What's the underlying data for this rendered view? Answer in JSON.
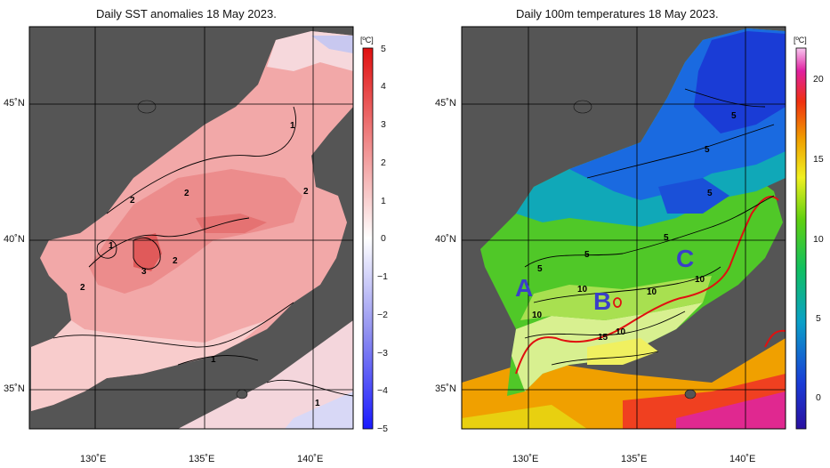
{
  "left_panel": {
    "title": "Daily SST anomalies 18 May 2023.",
    "unit": "[ºC]",
    "colorbar_ticks": [
      "5",
      "4",
      "3",
      "2",
      "1",
      "0",
      "−1",
      "−2",
      "−3",
      "−4",
      "−5"
    ],
    "contour_labels": [
      "1",
      "2",
      "2",
      "2",
      "1",
      "3",
      "2",
      "2",
      "1",
      "1"
    ]
  },
  "right_panel": {
    "title": "Daily 100m temperatures 18 May 2023.",
    "unit": "[ºC]",
    "colorbar_ticks": [
      "20",
      "15",
      "10",
      "5",
      "0"
    ],
    "contour_labels": [
      "5",
      "5",
      "5",
      "5",
      "5",
      "5",
      "10",
      "10",
      "10",
      "10",
      "10",
      "15"
    ],
    "region_labels": [
      "A",
      "B",
      "C"
    ]
  },
  "axes": {
    "lat_labels": [
      "45˚N",
      "40˚N",
      "35˚N"
    ],
    "lon_labels": [
      "130˚E",
      "135˚E",
      "140˚E"
    ]
  },
  "colors": {
    "land": "#555555",
    "grid": "#000000",
    "front_line": "#e01010",
    "region_letter": "#3a3fc8"
  }
}
